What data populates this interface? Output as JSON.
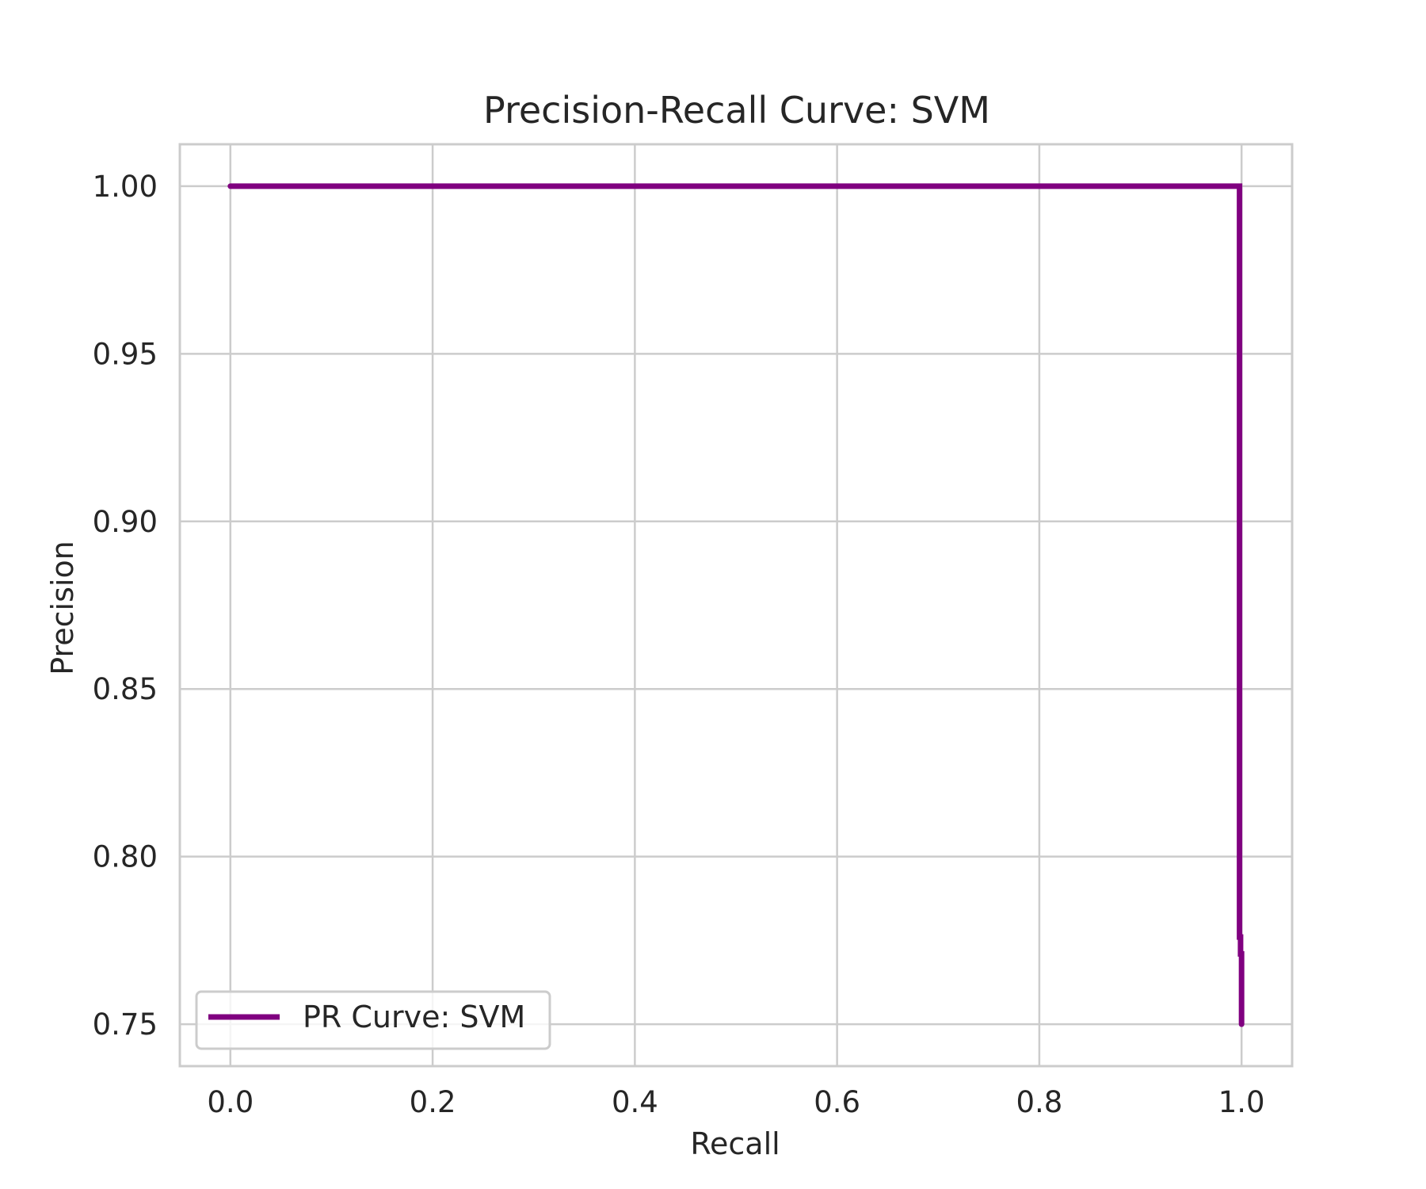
{
  "chart_data": {
    "type": "line",
    "title": "Precision-Recall Curve: SVM",
    "xlabel": "Recall",
    "ylabel": "Precision",
    "xlim": [
      -0.05,
      1.05
    ],
    "ylim": [
      0.7375,
      1.0125
    ],
    "xticks": [
      0.0,
      0.2,
      0.4,
      0.6,
      0.8,
      1.0
    ],
    "xtick_labels": [
      "0.0",
      "0.2",
      "0.4",
      "0.6",
      "0.8",
      "1.0"
    ],
    "yticks": [
      0.75,
      0.8,
      0.85,
      0.9,
      0.95,
      1.0
    ],
    "ytick_labels": [
      "0.75",
      "0.80",
      "0.85",
      "0.90",
      "0.95",
      "1.00"
    ],
    "grid": true,
    "legend_position": "lower-left",
    "series": [
      {
        "name": "PR Curve: SVM",
        "color": "#800080",
        "x": [
          0.0,
          0.998,
          0.998,
          0.999,
          0.999,
          1.0,
          1.0
        ],
        "y": [
          1.0,
          1.0,
          0.776,
          0.776,
          0.771,
          0.771,
          0.75
        ]
      }
    ]
  }
}
